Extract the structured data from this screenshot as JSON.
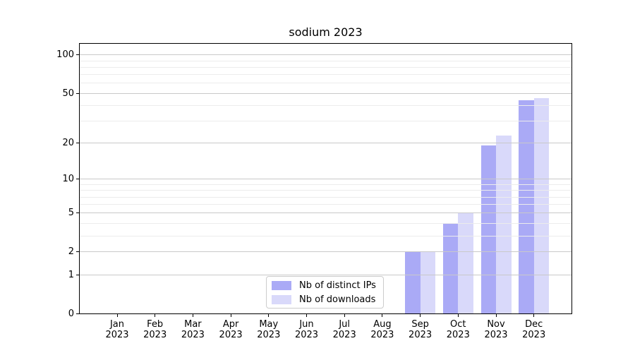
{
  "title": "sodium 2023",
  "colors": {
    "distinct_ips_bar": "#aaaaf6",
    "downloads_bar": "#d9d9fa",
    "major_grid": "#c9c9c9",
    "minor_grid": "#ececec",
    "axis": "#000000",
    "legend_border": "#cccccc",
    "background": "#ffffff"
  },
  "legend": {
    "position": "lower center"
  },
  "chart_data": {
    "type": "bar",
    "title": "sodium 2023",
    "categories": [
      "Jan 2023",
      "Feb 2023",
      "Mar 2023",
      "Apr 2023",
      "May 2023",
      "Jun 2023",
      "Jul 2023",
      "Aug 2023",
      "Sep 2023",
      "Oct 2023",
      "Nov 2023",
      "Dec 2023"
    ],
    "series": [
      {
        "name": "Nb of distinct IPs",
        "color": "#aaaaf6",
        "values": [
          0,
          0,
          0,
          0,
          0,
          0,
          0,
          0,
          2,
          4,
          19,
          44
        ]
      },
      {
        "name": "Nb of downloads",
        "color": "#d9d9fa",
        "values": [
          0,
          0,
          0,
          0,
          0,
          0,
          0,
          0,
          2,
          5,
          23,
          46
        ]
      }
    ],
    "xlabel": "",
    "ylabel": "",
    "yscale": "log1p",
    "ylim": [
      0,
      126
    ],
    "yticks": [
      0,
      1,
      2,
      5,
      10,
      20,
      50,
      100
    ],
    "minor_yticks": [
      3,
      4,
      6,
      7,
      8,
      9,
      30,
      40,
      60,
      70,
      80,
      90
    ],
    "grid": "horizontal, major and minor, drawn above bars",
    "legend_position": "lower center"
  }
}
